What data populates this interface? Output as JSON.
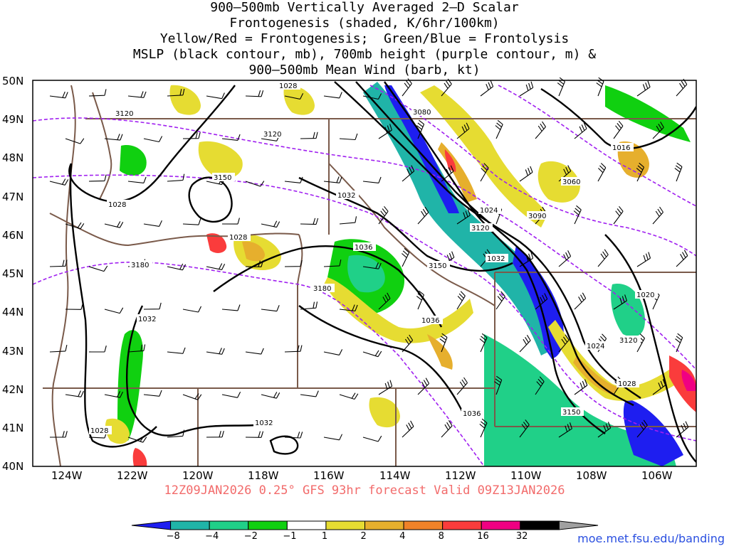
{
  "title_lines": [
    "900–500mb Vertically Averaged 2–D Scalar",
    "Frontogenesis (shaded, K/6hr/100km)",
    "Yellow/Red = Frontogenesis;  Green/Blue = Frontolysis",
    "MSLP (black contour, mb), 700mb height (purple contour, m) &",
    "900–500mb Mean Wind (barb, kt)"
  ],
  "lat_labels": [
    "50N",
    "49N",
    "48N",
    "47N",
    "46N",
    "45N",
    "44N",
    "43N",
    "42N",
    "41N",
    "40N"
  ],
  "lon_labels": [
    "124W",
    "122W",
    "120W",
    "118W",
    "116W",
    "114W",
    "112W",
    "110W",
    "108W",
    "106W"
  ],
  "valid_text": "12Z09JAN2026 0.25° GFS 93hr forecast Valid 09Z13JAN2026",
  "site": "moe.met.fsu.edu/banding",
  "colorbar": {
    "labels": [
      "−8",
      "−4",
      "−2",
      "−1",
      "1",
      "2",
      "4",
      "8",
      "16",
      "32"
    ],
    "colors": [
      "#1e1ef0",
      "#20b4a8",
      "#20d088",
      "#10d010",
      "#ffffff",
      "#e6dc32",
      "#e6af2d",
      "#f08228",
      "#fa3c3c",
      "#f00082",
      "#000000",
      "#a0a0a0"
    ]
  },
  "mslp_labels": [
    {
      "id": "mslp-1028-a",
      "text": "1028"
    },
    {
      "id": "mslp-1028-b",
      "text": "1028"
    },
    {
      "id": "mslp-1028-c",
      "text": "1028"
    },
    {
      "id": "mslp-1028-d",
      "text": "1028"
    },
    {
      "id": "mslp-1028-e",
      "text": "1028"
    },
    {
      "id": "mslp-1032-a",
      "text": "1032"
    },
    {
      "id": "mslp-1032-b",
      "text": "1032"
    },
    {
      "id": "mslp-1032-c",
      "text": "1032"
    },
    {
      "id": "mslp-1032-d",
      "text": "1032"
    },
    {
      "id": "mslp-1036-a",
      "text": "1036"
    },
    {
      "id": "mslp-1036-b",
      "text": "1036"
    },
    {
      "id": "mslp-1036-c",
      "text": "1036"
    },
    {
      "id": "mslp-1024-a",
      "text": "1024"
    },
    {
      "id": "mslp-1024-b",
      "text": "1024"
    },
    {
      "id": "mslp-1020",
      "text": "1020"
    },
    {
      "id": "mslp-1016",
      "text": "1016"
    }
  ],
  "height_labels": [
    {
      "id": "hgt-3120-a",
      "text": "3120"
    },
    {
      "id": "hgt-3120-b",
      "text": "3120"
    },
    {
      "id": "hgt-3120-c",
      "text": "3120"
    },
    {
      "id": "hgt-3120-d",
      "text": "3120"
    },
    {
      "id": "hgt-3150-a",
      "text": "3150"
    },
    {
      "id": "hgt-3150-b",
      "text": "3150"
    },
    {
      "id": "hgt-3150-c",
      "text": "3150"
    },
    {
      "id": "hgt-3180-a",
      "text": "3180"
    },
    {
      "id": "hgt-3180-b",
      "text": "3180"
    },
    {
      "id": "hgt-3090",
      "text": "3090"
    },
    {
      "id": "hgt-3060",
      "text": "3060"
    },
    {
      "id": "hgt-3080",
      "text": "3080"
    }
  ]
}
